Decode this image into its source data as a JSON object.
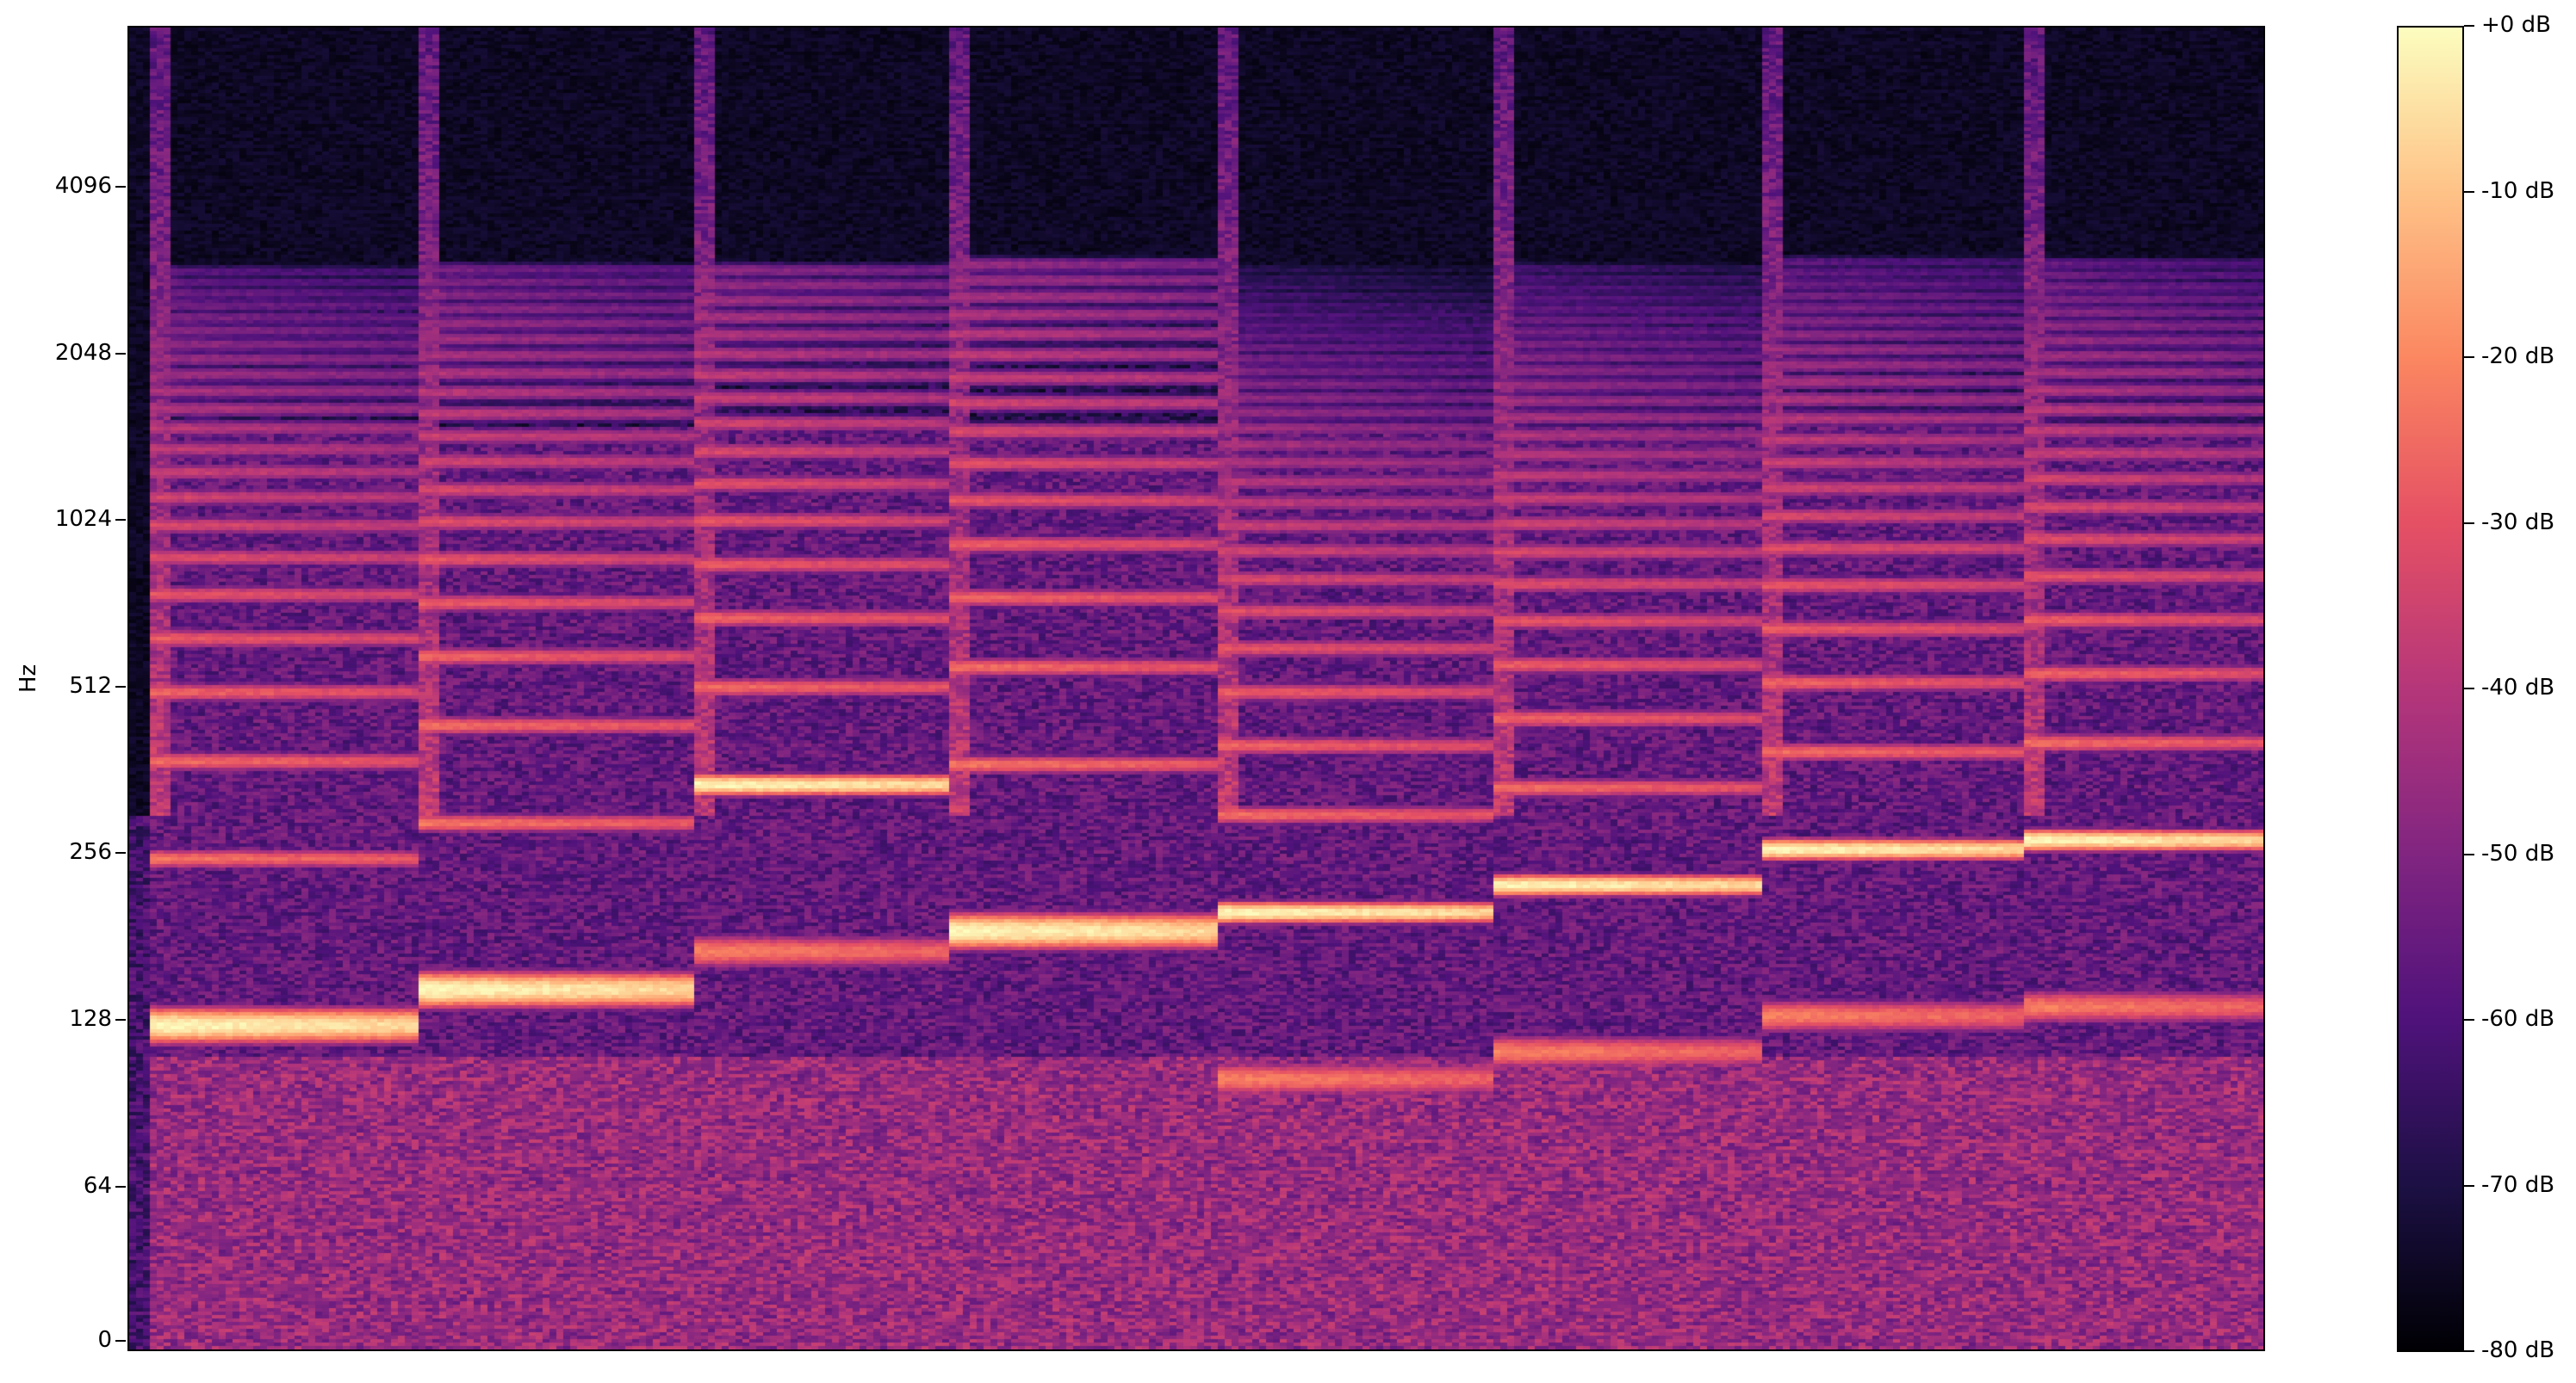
{
  "chart_data": {
    "type": "heatmap",
    "title": "",
    "xlabel": "",
    "ylabel": "Hz",
    "y_scale": "log",
    "ylim": [
      0,
      8000
    ],
    "yticks": [
      {
        "value": 0,
        "label": "0"
      },
      {
        "value": 64,
        "label": "64"
      },
      {
        "value": 128,
        "label": "128"
      },
      {
        "value": 256,
        "label": "256"
      },
      {
        "value": 512,
        "label": "512"
      },
      {
        "value": 1024,
        "label": "1024"
      },
      {
        "value": 2048,
        "label": "2048"
      },
      {
        "value": 4096,
        "label": "4096"
      }
    ],
    "colormap": "magma",
    "colorbar": {
      "vmin": -80,
      "vmax": 0,
      "ticks": [
        {
          "value": 0,
          "label": "+0 dB"
        },
        {
          "value": -10,
          "label": "-10 dB"
        },
        {
          "value": -20,
          "label": "-20 dB"
        },
        {
          "value": -30,
          "label": "-30 dB"
        },
        {
          "value": -40,
          "label": "-40 dB"
        },
        {
          "value": -50,
          "label": "-50 dB"
        },
        {
          "value": -60,
          "label": "-60 dB"
        },
        {
          "value": -70,
          "label": "-70 dB"
        },
        {
          "value": -80,
          "label": "-80 dB"
        }
      ]
    },
    "notes": [
      {
        "f0_hz": 125,
        "strongest_hz": 125
      },
      {
        "f0_hz": 145,
        "strongest_hz": 145
      },
      {
        "f0_hz": 170,
        "strongest_hz": 340
      },
      {
        "f0_hz": 185,
        "strongest_hz": 185
      },
      {
        "f0_hz": 100,
        "strongest_hz": 200
      },
      {
        "f0_hz": 112,
        "strongest_hz": 225
      },
      {
        "f0_hz": 130,
        "strongest_hz": 260
      },
      {
        "f0_hz": 135,
        "strongest_hz": 270
      }
    ],
    "grid": false
  }
}
